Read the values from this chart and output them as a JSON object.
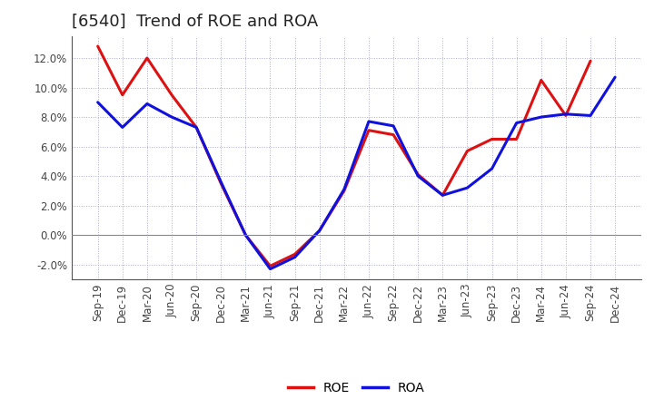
{
  "title": "[6540]  Trend of ROE and ROA",
  "x_labels": [
    "Sep-19",
    "Dec-19",
    "Mar-20",
    "Jun-20",
    "Sep-20",
    "Dec-20",
    "Mar-21",
    "Jun-21",
    "Sep-21",
    "Dec-21",
    "Mar-22",
    "Jun-22",
    "Sep-22",
    "Dec-22",
    "Mar-23",
    "Jun-23",
    "Sep-23",
    "Dec-23",
    "Mar-24",
    "Jun-24",
    "Sep-24",
    "Dec-24"
  ],
  "roe": [
    12.8,
    9.5,
    12.0,
    9.5,
    7.3,
    3.5,
    0.0,
    -2.1,
    -1.3,
    0.3,
    3.0,
    7.1,
    6.8,
    4.1,
    2.7,
    5.7,
    6.5,
    6.5,
    10.5,
    8.1,
    11.8,
    null
  ],
  "roa": [
    9.0,
    7.3,
    8.9,
    8.0,
    7.3,
    3.6,
    0.0,
    -2.3,
    -1.5,
    0.3,
    3.1,
    7.7,
    7.4,
    4.0,
    2.7,
    3.2,
    4.5,
    7.6,
    8.0,
    8.2,
    8.1,
    10.7
  ],
  "roe_color": "#dd1111",
  "roa_color": "#1111dd",
  "background_color": "#ffffff",
  "plot_bg_color": "#ffffff",
  "grid_color": "#aaaacc",
  "ylim": [
    -3.0,
    13.5
  ],
  "yticks": [
    -2.0,
    0.0,
    2.0,
    4.0,
    6.0,
    8.0,
    10.0,
    12.0
  ],
  "line_width": 2.2,
  "legend_labels": [
    "ROE",
    "ROA"
  ],
  "title_fontsize": 13,
  "tick_fontsize": 8.5
}
